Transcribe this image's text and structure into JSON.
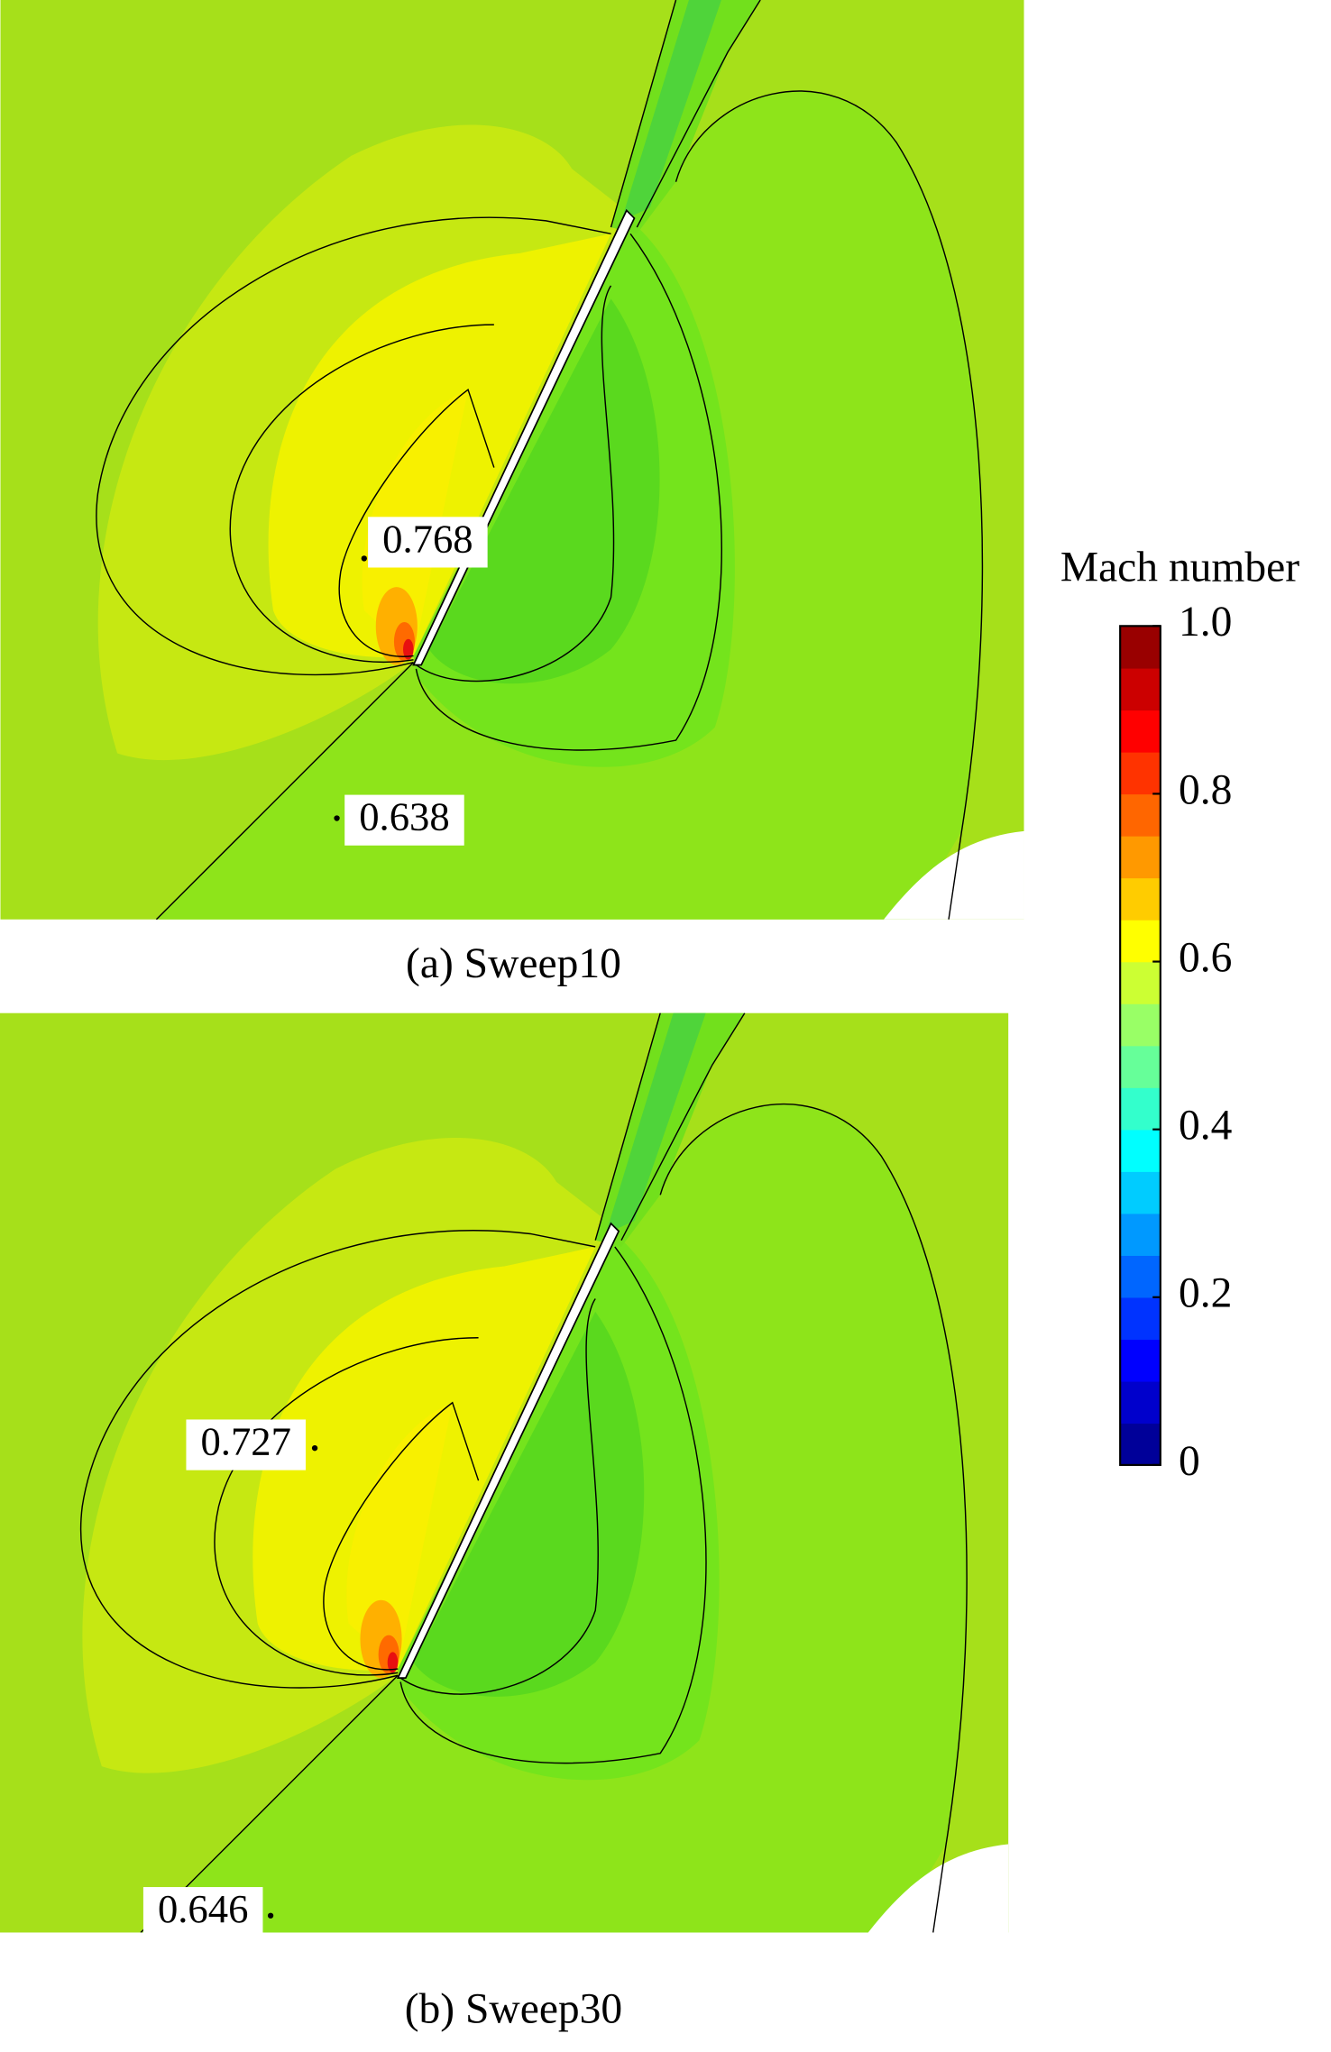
{
  "panels": [
    {
      "caption": "(a) Sweep10",
      "labels": [
        "0.768",
        "0.638"
      ]
    },
    {
      "caption": "(b) Sweep30",
      "labels": [
        "0.727",
        "0.646"
      ]
    }
  ],
  "colorbar": {
    "title": "Mach number",
    "lim": [
      0,
      1
    ],
    "ticks": [
      0,
      0.2,
      0.4,
      0.6,
      0.8,
      {
        "value": 1,
        "label": "1.0"
      }
    ]
  }
}
